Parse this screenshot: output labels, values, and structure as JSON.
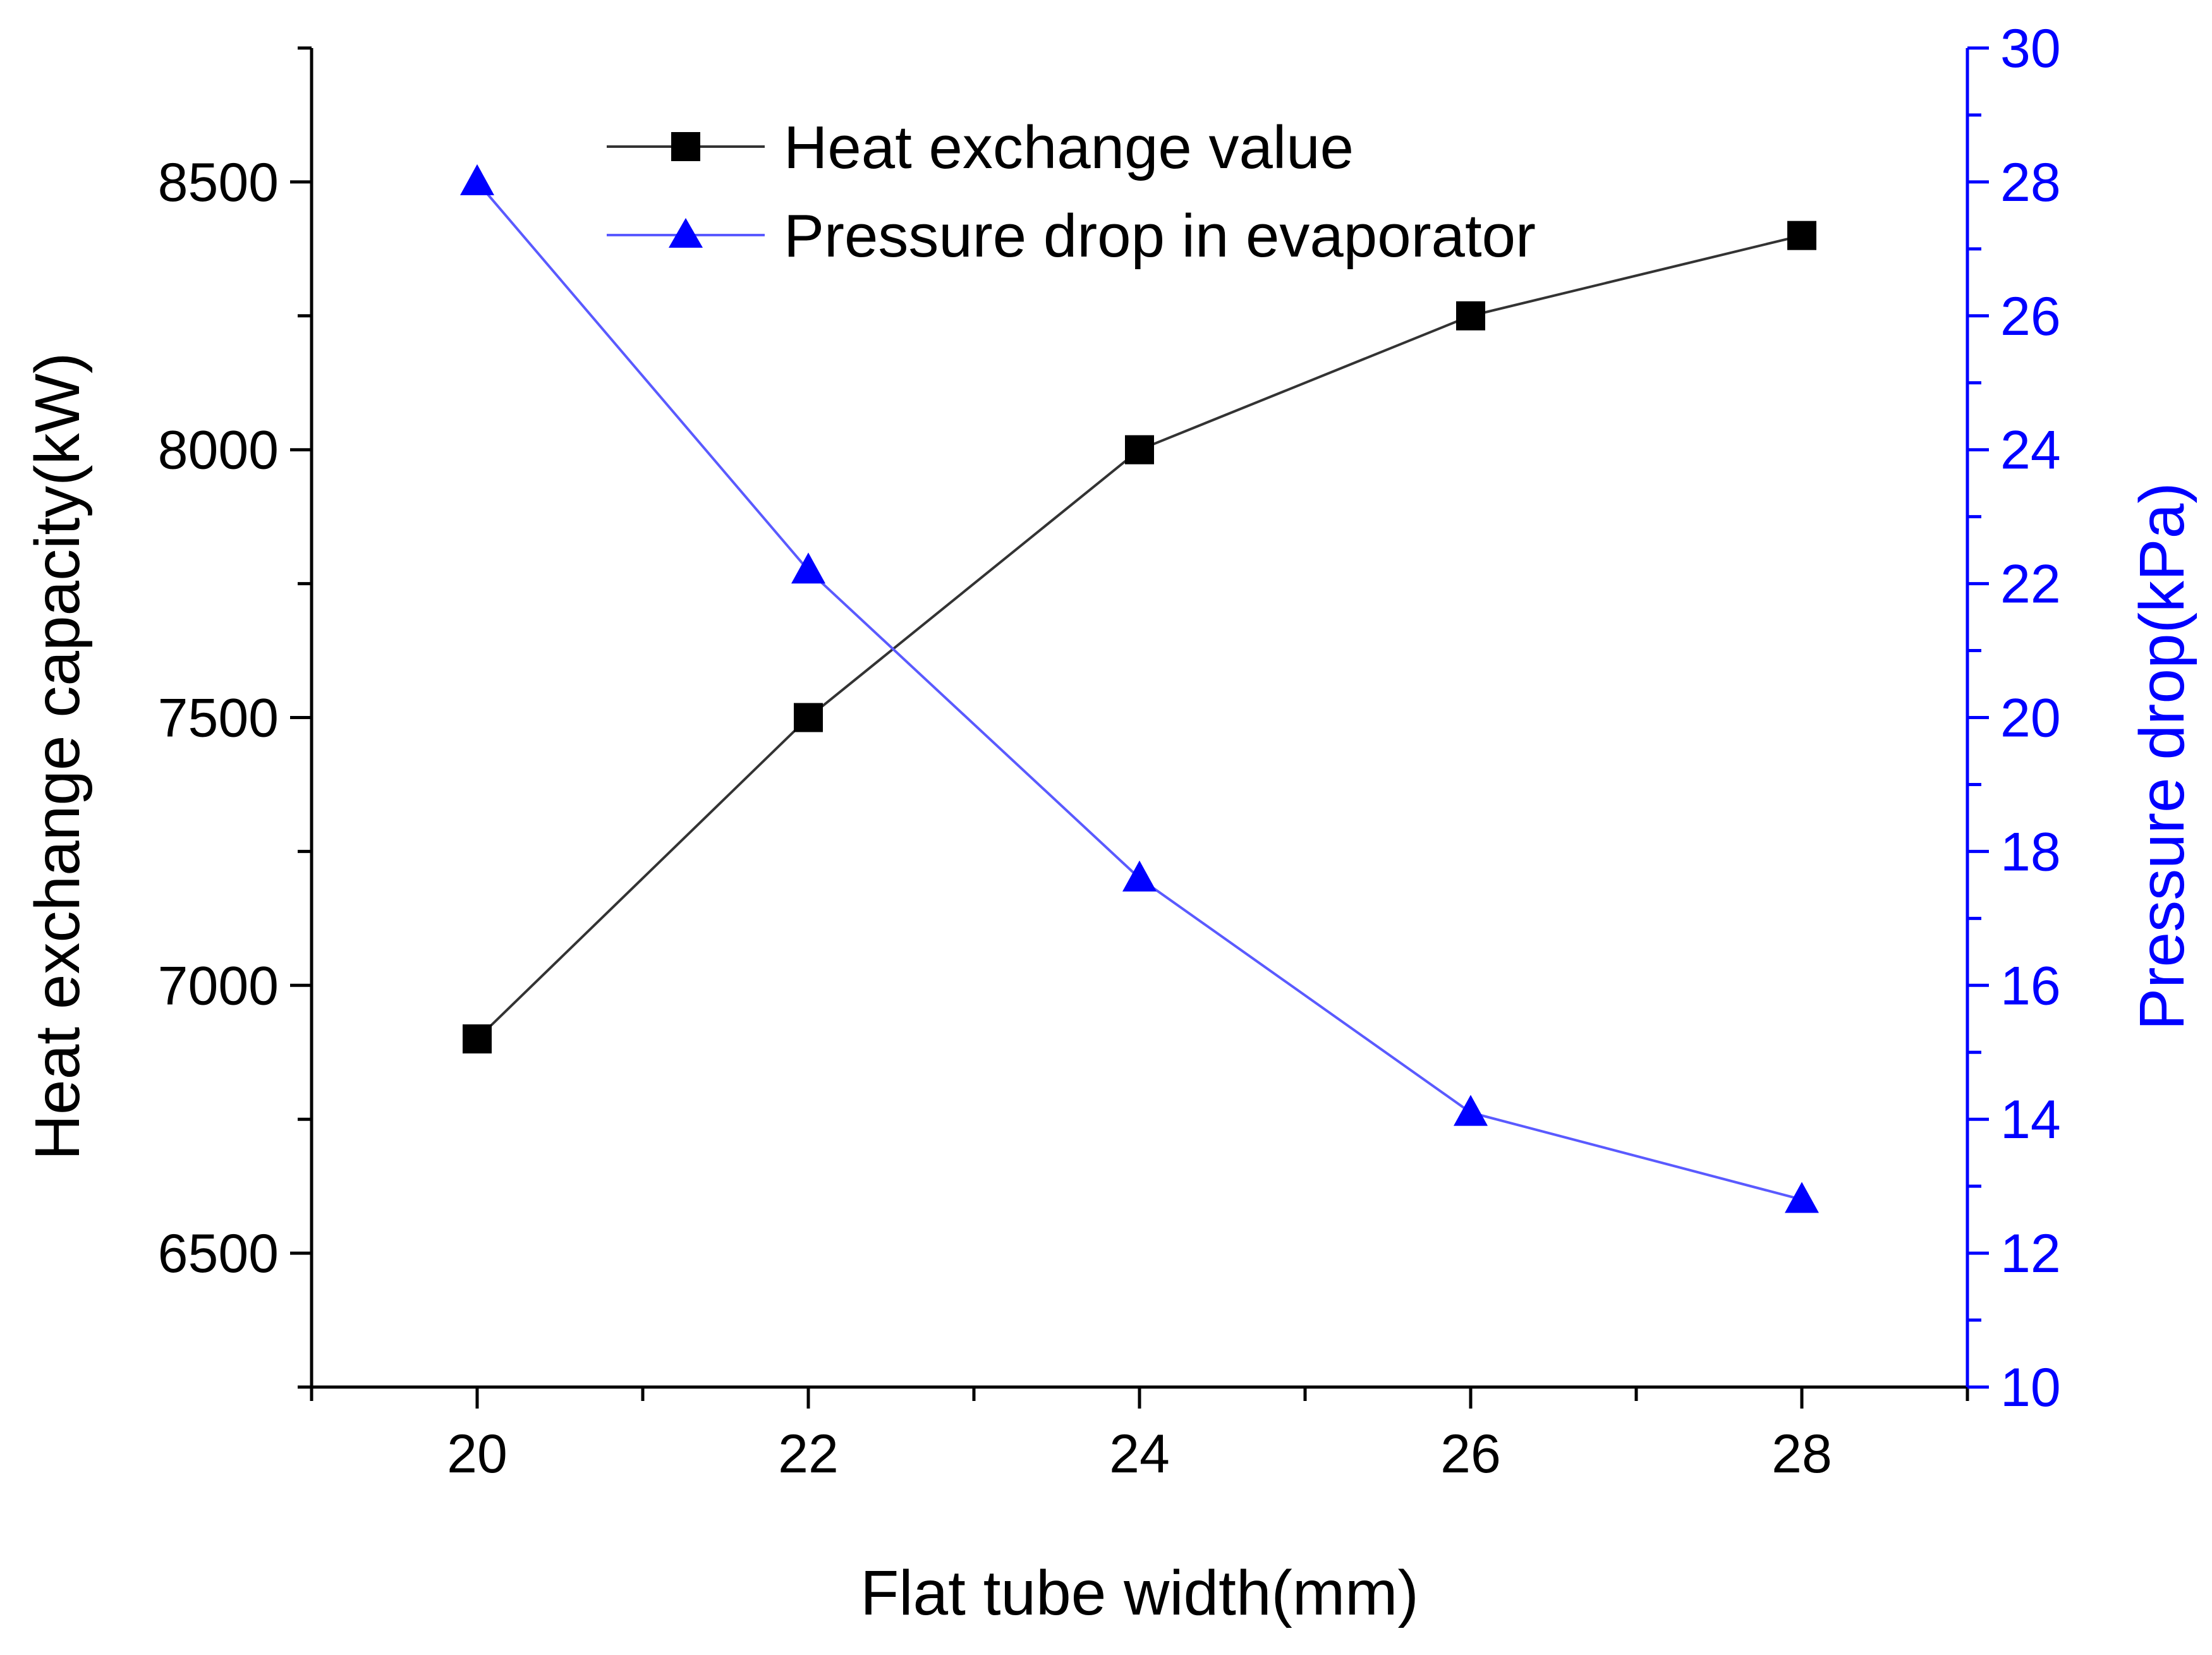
{
  "chart_data": {
    "type": "line",
    "title": "",
    "xlabel": "Flat tube width(mm)",
    "ylabel": "Heat exchange capacity(kW)",
    "y2label": "Pressure drop(kPa)",
    "x": [
      20,
      22,
      24,
      26,
      28
    ],
    "xlim": [
      19,
      29
    ],
    "ylim": [
      6250,
      8750
    ],
    "y2lim": [
      10,
      30
    ],
    "x_ticks": [
      "20",
      "22",
      "24",
      "26",
      "28"
    ],
    "y_ticks": [
      "6500",
      "7000",
      "7500",
      "8000",
      "8500"
    ],
    "y2_ticks": [
      "10",
      "12",
      "14",
      "16",
      "18",
      "20",
      "22",
      "24",
      "26",
      "28",
      "30"
    ],
    "series": [
      {
        "name": "Heat exchange value",
        "axis": "left",
        "marker": "square",
        "color": "#000000",
        "line_color": "#333333",
        "values": [
          6900,
          7500,
          8000,
          8250,
          8400
        ]
      },
      {
        "name": "Pressure drop in evaporator",
        "axis": "right",
        "marker": "triangle",
        "color": "#0000ff",
        "line_color": "#5a5aff",
        "values": [
          28,
          22.2,
          17.6,
          14.1,
          12.8
        ]
      }
    ],
    "legend": "top-center",
    "grid": false
  }
}
